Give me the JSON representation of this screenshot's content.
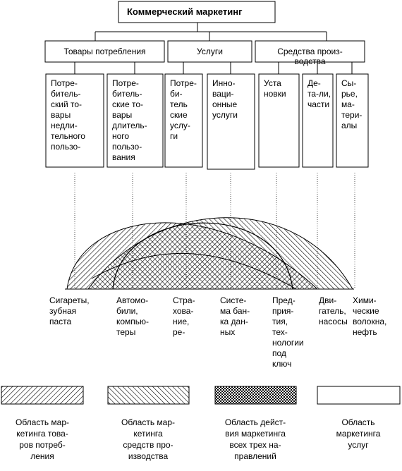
{
  "title": "Коммерческий маркетинг",
  "groups": [
    {
      "lines": [
        "Товары потребления"
      ]
    },
    {
      "lines": [
        "Услуги"
      ]
    },
    {
      "lines": [
        "Средства  произ-",
        "водства"
      ]
    }
  ],
  "boxes": [
    {
      "lines": [
        "Потре-",
        "битель-",
        "ский то-",
        "вары",
        "недли-",
        "тельного",
        "пользо-"
      ]
    },
    {
      "lines": [
        "Потре-",
        "битель-",
        "ские то-",
        "вары",
        "длитель-",
        "ного",
        "пользо-",
        "вания"
      ]
    },
    {
      "lines": [
        "Потре-",
        "би-",
        "тель",
        "ские",
        "услу-",
        "ги"
      ]
    },
    {
      "lines": [
        "Инно-",
        "ваци-",
        "онные",
        "услуги"
      ]
    },
    {
      "lines": [
        "Уста",
        "новки"
      ]
    },
    {
      "lines": [
        "Де-",
        "та-ли,",
        "части"
      ]
    },
    {
      "lines": [
        "Сы-",
        "рье,",
        "ма-",
        "тери-",
        "алы"
      ]
    }
  ],
  "examples": [
    {
      "lines": [
        "Сигареты,",
        "зубная",
        "паста"
      ]
    },
    {
      "lines": [
        "Автомо-",
        "били,",
        "компью-",
        "теры"
      ]
    },
    {
      "lines": [
        "Стра-",
        "хова-",
        "ние,",
        "ре-"
      ]
    },
    {
      "lines": [
        "Систе-",
        "ма бан-",
        "ка дан-",
        "ных"
      ]
    },
    {
      "lines": [
        "Пред-",
        "прия-",
        "тия,",
        "тех-",
        "нологии",
        "под",
        "ключ"
      ]
    },
    {
      "lines": [
        "Дви-",
        "гатель,",
        "насосы"
      ]
    },
    {
      "lines": [
        "Хими-",
        "ческие",
        "волокна,",
        "нефть"
      ]
    }
  ],
  "legend": [
    {
      "lines": [
        "Область мар-",
        "кетинга това-",
        "ров потреб-",
        "ления"
      ]
    },
    {
      "lines": [
        "Область мар-",
        "кетинга",
        "средств про-",
        "изводства"
      ]
    },
    {
      "lines": [
        "Область  дейст-",
        "вия маркетинга",
        "всех трех на-",
        "правлений"
      ]
    },
    {
      "lines": [
        "Область",
        "маркетинга",
        "услуг"
      ]
    }
  ]
}
